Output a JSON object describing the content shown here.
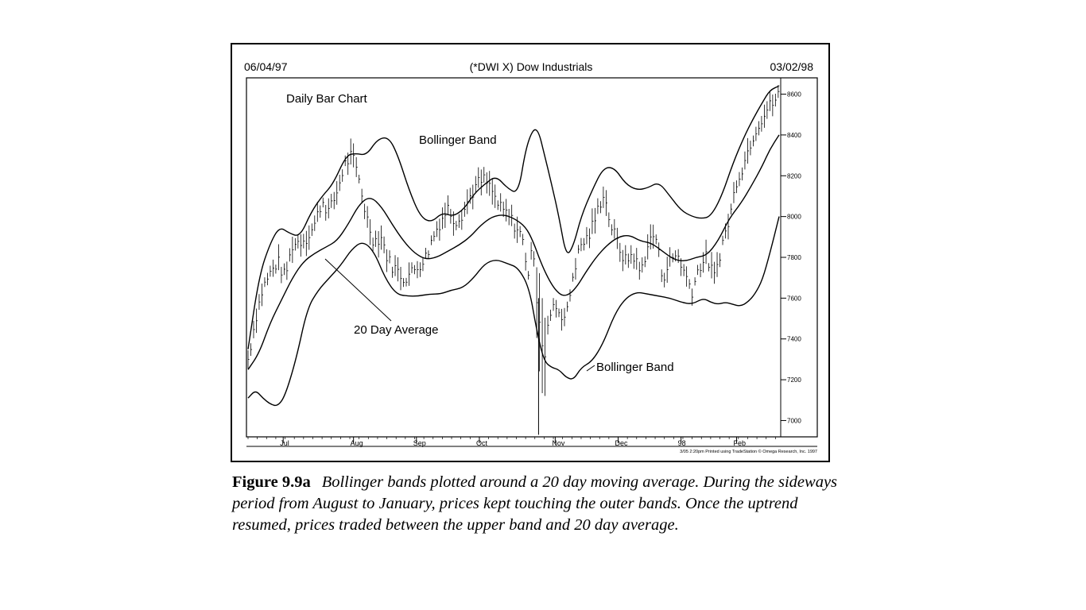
{
  "chart_data": {
    "type": "bar",
    "subtype": "ohlc-daily-bars-with-bollinger-bands",
    "header_left": "06/04/97",
    "title": "(*DWI X) Dow Industrials",
    "header_right": "03/02/98",
    "panel_label": "Daily Bar Chart",
    "annotations": [
      "Bollinger Band",
      "20 Day Average",
      "Bollinger Band"
    ],
    "y_ticks": [
      8600,
      8400,
      8200,
      8000,
      7800,
      7600,
      7400,
      7200,
      7000
    ],
    "ylim": [
      6920,
      8680
    ],
    "x_ticks": [
      "Jul",
      "Aug",
      "Sep",
      "Oct",
      "Nov",
      "Dec",
      "98",
      "Feb"
    ],
    "x_tick_days": [
      19,
      57,
      91,
      125,
      166,
      200,
      234,
      264
    ],
    "x_days_total": 287,
    "footer": "3/05  2:20pm Printed using TradeStation © Omega Research, Inc. 1997",
    "series": [
      {
        "name": "Bollinger Band",
        "line": "upper-band",
        "x": [
          0,
          6,
          12,
          17,
          22,
          28,
          34,
          40,
          46,
          53,
          58,
          64,
          70,
          76,
          81,
          87,
          93,
          99,
          105,
          111,
          117,
          122,
          128,
          134,
          140,
          146,
          150,
          154,
          157,
          160,
          164,
          168,
          172,
          176,
          180,
          186,
          192,
          198,
          204,
          210,
          216,
          222,
          228,
          234,
          240,
          245,
          250,
          256,
          262,
          268,
          273,
          278,
          282,
          287
        ],
        "values": [
          7350,
          7710,
          7870,
          7950,
          7920,
          7900,
          8020,
          8100,
          8160,
          8300,
          8310,
          8300,
          8380,
          8390,
          8300,
          8130,
          8000,
          7970,
          8020,
          8000,
          8040,
          8110,
          8160,
          8200,
          8140,
          8110,
          8330,
          8430,
          8420,
          8310,
          8160,
          8000,
          7800,
          7860,
          8000,
          8130,
          8240,
          8240,
          8160,
          8130,
          8140,
          8170,
          8100,
          8030,
          8000,
          7990,
          8000,
          8100,
          8260,
          8390,
          8480,
          8560,
          8620,
          8640
        ]
      },
      {
        "name": "20 Day Average",
        "line": "moving-average",
        "x": [
          0,
          6,
          12,
          18,
          24,
          30,
          36,
          42,
          48,
          54,
          60,
          66,
          72,
          78,
          84,
          90,
          96,
          102,
          108,
          114,
          120,
          126,
          132,
          138,
          144,
          150,
          154,
          158,
          162,
          166,
          170,
          174,
          178,
          182,
          188,
          194,
          200,
          206,
          212,
          218,
          224,
          230,
          236,
          242,
          248,
          254,
          260,
          266,
          272,
          278,
          282,
          287
        ],
        "values": [
          7250,
          7330,
          7480,
          7590,
          7700,
          7780,
          7820,
          7850,
          7880,
          7960,
          8060,
          8100,
          8050,
          7960,
          7880,
          7820,
          7790,
          7800,
          7830,
          7860,
          7900,
          7960,
          8000,
          8010,
          7990,
          7950,
          7880,
          7780,
          7700,
          7640,
          7610,
          7620,
          7660,
          7720,
          7800,
          7860,
          7900,
          7910,
          7880,
          7870,
          7830,
          7790,
          7780,
          7800,
          7810,
          7880,
          7990,
          8060,
          8150,
          8250,
          8330,
          8400
        ]
      },
      {
        "name": "Bollinger Band",
        "line": "lower-band",
        "x": [
          0,
          4,
          8,
          12,
          16,
          20,
          26,
          32,
          38,
          44,
          50,
          56,
          62,
          68,
          74,
          80,
          86,
          92,
          98,
          104,
          110,
          116,
          122,
          128,
          134,
          140,
          146,
          152,
          156,
          160,
          164,
          168,
          172,
          176,
          180,
          186,
          192,
          198,
          204,
          210,
          216,
          222,
          228,
          234,
          240,
          246,
          250,
          254,
          258,
          262,
          266,
          270,
          274,
          278,
          282,
          287
        ],
        "values": [
          7110,
          7150,
          7110,
          7080,
          7070,
          7120,
          7300,
          7550,
          7640,
          7700,
          7760,
          7840,
          7880,
          7830,
          7700,
          7620,
          7610,
          7610,
          7620,
          7620,
          7640,
          7650,
          7700,
          7770,
          7790,
          7770,
          7750,
          7650,
          7440,
          7290,
          7260,
          7250,
          7210,
          7200,
          7260,
          7290,
          7380,
          7520,
          7600,
          7630,
          7620,
          7610,
          7600,
          7580,
          7570,
          7600,
          7580,
          7570,
          7580,
          7570,
          7560,
          7580,
          7620,
          7690,
          7820,
          8000
        ]
      },
      {
        "name": "",
        "line": "daily-price-bars",
        "x": [
          0,
          4,
          8,
          12,
          16,
          20,
          24,
          28,
          32,
          36,
          40,
          44,
          48,
          52,
          56,
          60,
          64,
          68,
          72,
          76,
          80,
          84,
          88,
          92,
          96,
          100,
          104,
          108,
          112,
          116,
          120,
          124,
          128,
          132,
          136,
          140,
          144,
          148,
          152,
          154,
          156,
          158,
          160,
          164,
          168,
          172,
          176,
          180,
          184,
          188,
          192,
          196,
          200,
          204,
          208,
          212,
          216,
          220,
          224,
          228,
          232,
          236,
          240,
          244,
          248,
          252,
          256,
          260,
          264,
          268,
          272,
          276,
          280,
          284,
          287
        ],
        "values": [
          7300,
          7500,
          7650,
          7720,
          7780,
          7700,
          7860,
          7880,
          7900,
          7960,
          8080,
          8020,
          8120,
          8250,
          8300,
          8180,
          8000,
          7880,
          7900,
          7780,
          7740,
          7700,
          7720,
          7760,
          7800,
          7900,
          7980,
          8040,
          7980,
          8020,
          8100,
          8160,
          8180,
          8120,
          8040,
          8010,
          7960,
          7900,
          7700,
          7900,
          7600,
          7420,
          7300,
          7580,
          7540,
          7500,
          7740,
          7860,
          7900,
          8000,
          8120,
          7960,
          7860,
          7780,
          7820,
          7720,
          7860,
          7920,
          7700,
          7780,
          7820,
          7720,
          7640,
          7760,
          7800,
          7700,
          7860,
          7980,
          8180,
          8260,
          8380,
          8460,
          8520,
          8560,
          8600
        ]
      }
    ]
  },
  "caption": {
    "label": "Figure 9.9a",
    "text": "Bollinger bands plotted around a 20 day moving average. During the sideways period from August to January, prices kept touching the outer bands. Once the uptrend resumed, prices traded between the upper band and 20 day average."
  }
}
